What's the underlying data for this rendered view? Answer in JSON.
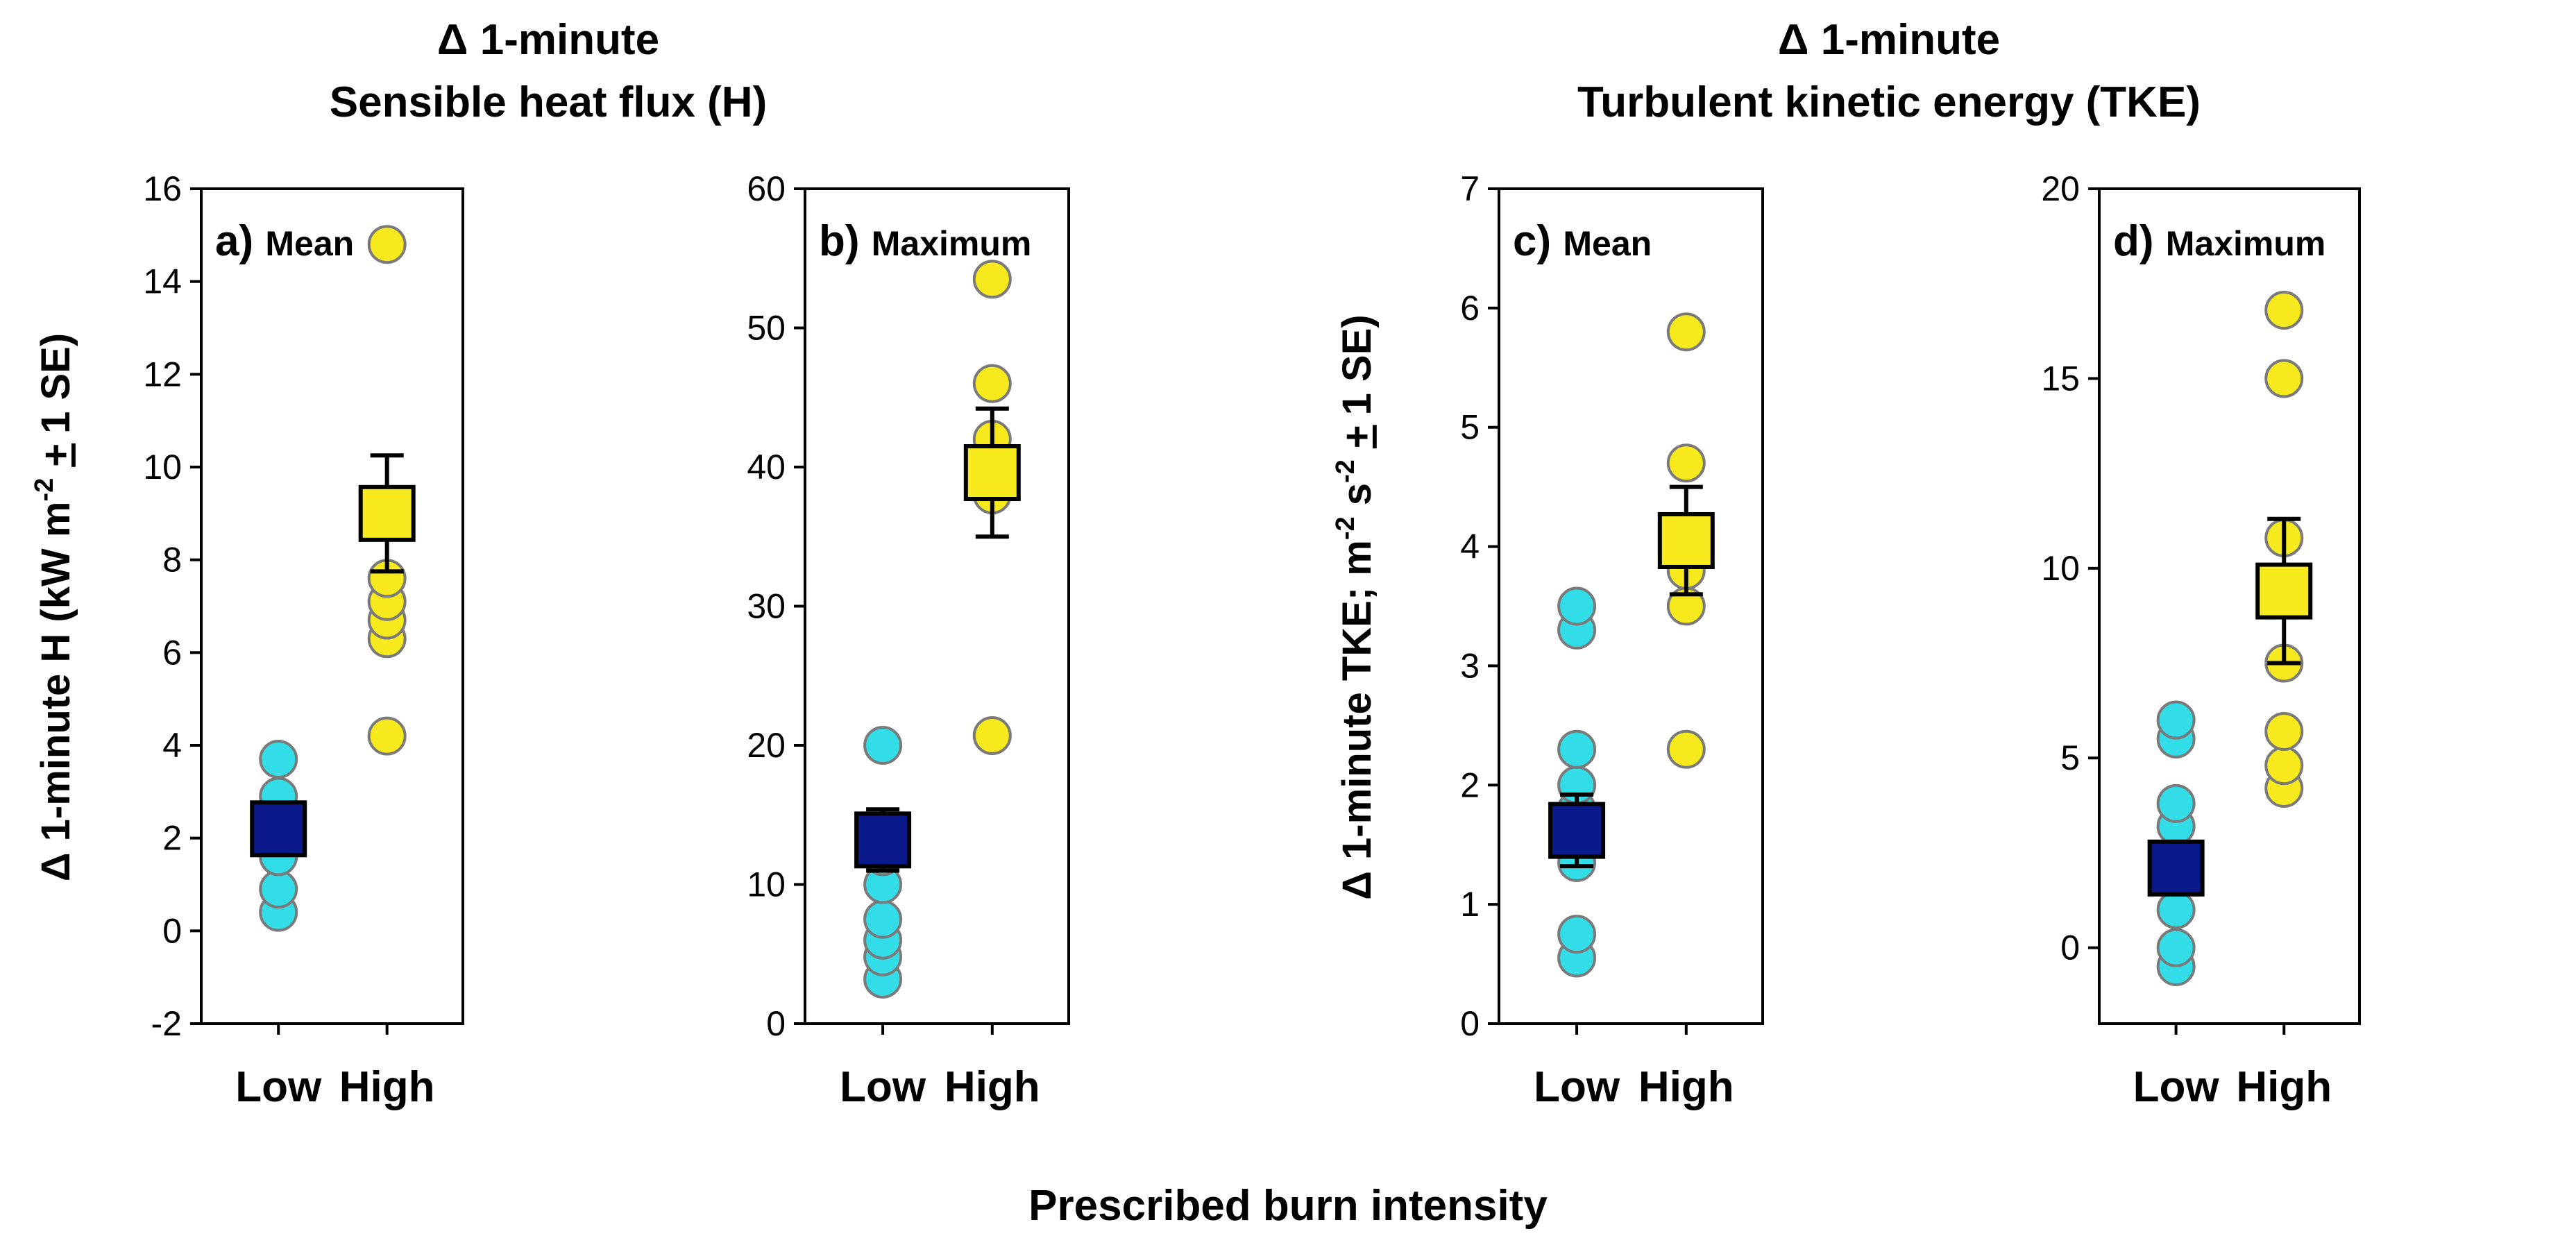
{
  "figure": {
    "title_left_line1": "Δ 1-minute",
    "title_left_line2": "Sensible heat flux (H)",
    "title_right_line1": "Δ 1-minute",
    "title_right_line2": "Turbulent kinetic energy (TKE)",
    "ylabel_left": {
      "prefix": "Δ 1-minute H (kW m",
      "exp": "-2",
      "pm": "+",
      "suffix": "1 SE)"
    },
    "ylabel_right": {
      "prefix": "Δ 1-minute TKE; m",
      "exp1": "-2",
      "mid": " s",
      "exp2": "-2",
      "pm": "+",
      "suffix": "1 SE)"
    },
    "xlabel": "Prescribed burn intensity"
  },
  "colors": {
    "low_points": "#33dde8",
    "high_points": "#f6ea1e",
    "low_mean": "#0a1a8a",
    "high_mean": "#f6ea1e",
    "point_edge": "#7a7a7a",
    "mean_edge": "#000000"
  },
  "chart_data": [
    {
      "type": "scatter",
      "panel": "a)",
      "label": "Mean",
      "categories": [
        "Low",
        "High"
      ],
      "ylim": [
        -2,
        16
      ],
      "yticks": [
        -2,
        0,
        2,
        4,
        6,
        8,
        10,
        12,
        14,
        16
      ],
      "low_points": [
        0.4,
        0.9,
        1.6,
        2.1,
        2.6,
        2.9,
        3.7
      ],
      "high_points": [
        4.2,
        6.3,
        6.7,
        7.1,
        7.6,
        14.8
      ],
      "low_mean": 2.2,
      "low_se": 0.4,
      "high_mean": 9.0,
      "high_se": 1.25
    },
    {
      "type": "scatter",
      "panel": "b)",
      "label": "Maximum",
      "categories": [
        "Low",
        "High"
      ],
      "ylim": [
        0,
        60
      ],
      "yticks": [
        0,
        10,
        20,
        30,
        40,
        50,
        60
      ],
      "low_points": [
        3.2,
        4.8,
        6.0,
        7.5,
        10.0,
        12.0,
        20.0
      ],
      "high_points": [
        20.7,
        38.0,
        40.0,
        42.0,
        46.0,
        53.5
      ],
      "low_mean": 13.2,
      "low_se": 2.2,
      "high_mean": 39.6,
      "high_se": 4.6
    },
    {
      "type": "scatter",
      "panel": "c)",
      "label": "Mean",
      "categories": [
        "Low",
        "High"
      ],
      "ylim": [
        0,
        7
      ],
      "yticks": [
        0,
        1,
        2,
        3,
        4,
        5,
        6,
        7
      ],
      "low_points": [
        0.55,
        0.75,
        1.35,
        1.6,
        1.8,
        2.0,
        2.3,
        3.3,
        3.5
      ],
      "high_points": [
        2.3,
        3.5,
        3.8,
        4.7,
        5.8
      ],
      "low_mean": 1.62,
      "low_se": 0.3,
      "high_mean": 4.05,
      "high_se": 0.45
    },
    {
      "type": "scatter",
      "panel": "d)",
      "label": "Maximum",
      "categories": [
        "Low",
        "High"
      ],
      "ylim": [
        -2,
        20
      ],
      "yticks": [
        0,
        5,
        10,
        15,
        20
      ],
      "low_points": [
        -0.5,
        0.0,
        1.0,
        2.0,
        3.2,
        3.8,
        5.5,
        6.0
      ],
      "high_points": [
        4.2,
        4.8,
        5.7,
        7.5,
        10.8,
        15.0,
        16.8
      ],
      "low_mean": 2.1,
      "low_se": 0.5,
      "high_mean": 9.4,
      "high_se": 1.9
    }
  ]
}
